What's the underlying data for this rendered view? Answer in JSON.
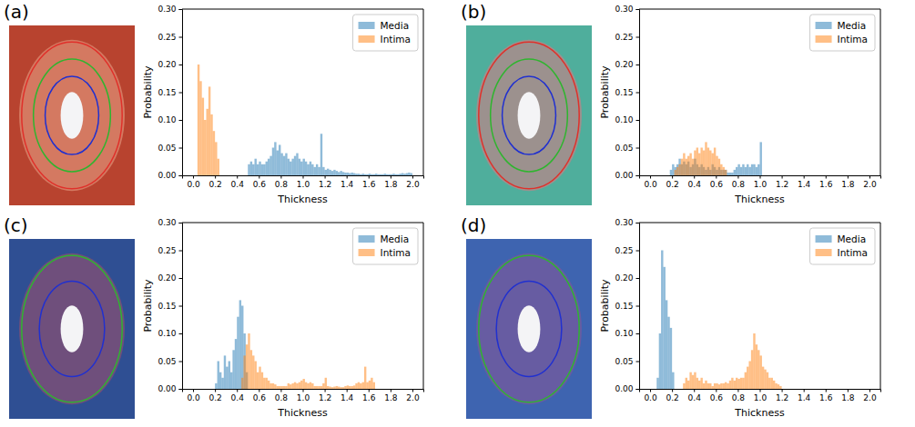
{
  "chart_data": [
    {
      "type": "histogram",
      "label": "(a)",
      "x_label": "Thickness",
      "y_label": "Probability",
      "xlim": [
        -0.1,
        2.1
      ],
      "ylim": [
        0,
        0.3
      ],
      "xticks": [
        {
          "value": 0,
          "label": "0.0"
        },
        0.2,
        0.4,
        0.6,
        0.8,
        {
          "value": 1,
          "label": "1.0"
        },
        1.2,
        1.4,
        1.6,
        1.8,
        {
          "value": 2,
          "label": "2.0"
        }
      ],
      "yticks": [
        {
          "value": 0,
          "label": "0.00"
        },
        {
          "value": 0.05,
          "label": "0.05"
        },
        {
          "value": 0.1,
          "label": "0.10"
        },
        {
          "value": 0.15,
          "label": "0.15"
        },
        {
          "value": 0.2,
          "label": "0.20"
        },
        {
          "value": 0.25,
          "label": "0.25"
        },
        {
          "value": 0.3,
          "label": "0.30"
        }
      ],
      "legend": "upper right",
      "series": [
        {
          "name": "Media",
          "color": "#1f77b4",
          "bins": [
            0.5,
            0.52,
            0.54,
            0.56,
            0.58,
            0.6,
            0.62,
            0.64,
            0.66,
            0.68,
            0.7,
            0.72,
            0.74,
            0.76,
            0.78,
            0.8,
            0.82,
            0.84,
            0.86,
            0.88,
            0.9,
            0.92,
            0.94,
            0.96,
            0.98,
            1,
            1.02,
            1.04,
            1.06,
            1.08,
            1.1,
            1.12,
            1.14,
            1.16,
            1.18,
            1.2,
            1.22,
            1.24,
            1.26,
            1.28,
            1.3,
            1.32,
            1.34,
            1.36,
            1.38,
            1.4,
            1.42,
            1.44,
            1.46,
            1.48,
            1.5,
            1.52,
            1.54,
            1.56,
            1.58,
            1.6,
            1.62,
            1.64,
            1.66,
            1.68,
            1.7,
            1.72,
            1.74,
            1.76,
            1.78,
            1.8,
            1.82,
            1.84,
            1.86,
            1.88,
            1.9,
            1.92,
            1.94,
            1.96,
            1.98,
            2
          ],
          "values": [
            0.02,
            0.025,
            0.02,
            0.03,
            0.02,
            0.025,
            0.02,
            0.02,
            0.025,
            0.03,
            0.035,
            0.05,
            0.06,
            0.045,
            0.055,
            0.04,
            0.035,
            0.04,
            0.03,
            0.025,
            0.03,
            0.035,
            0.04,
            0.03,
            0.025,
            0.03,
            0.025,
            0.02,
            0.025,
            0.02,
            0.015,
            0.02,
            0.015,
            0.075,
            0.015,
            0.01,
            0.012,
            0.01,
            0.008,
            0.01,
            0.008,
            0.006,
            0.008,
            0.006,
            0.005,
            0.005,
            0.004,
            0.005,
            0.004,
            0.003,
            0.003,
            0.002,
            0.003,
            0.002,
            0.002,
            0.003,
            0.002,
            0.002,
            0.003,
            0.002,
            0.002,
            0.002,
            0.003,
            0.002,
            0.002,
            0.002,
            0.003,
            0.002,
            0.002,
            0.003,
            0.004,
            0.003,
            0.004,
            0.005,
            0.004
          ]
        },
        {
          "name": "Intima",
          "color": "#ff7f0e",
          "bins": [
            0.04,
            0.06,
            0.08,
            0.1,
            0.12,
            0.14,
            0.16,
            0.18,
            0.2,
            0.22,
            0.24
          ],
          "values": [
            0.2,
            0.17,
            0.14,
            0.1,
            0.12,
            0.16,
            0.11,
            0.08,
            0.06,
            0.03
          ]
        }
      ]
    },
    {
      "type": "histogram",
      "label": "(b)",
      "x_label": "Thickness",
      "y_label": "Probability",
      "xlim": [
        -0.1,
        2.1
      ],
      "ylim": [
        0,
        0.3
      ],
      "xticks": [
        {
          "value": 0,
          "label": "0.0"
        },
        0.2,
        0.4,
        0.6,
        0.8,
        {
          "value": 1,
          "label": "1.0"
        },
        1.2,
        1.4,
        1.6,
        1.8,
        {
          "value": 2,
          "label": "2.0"
        }
      ],
      "yticks": [
        {
          "value": 0,
          "label": "0.00"
        },
        {
          "value": 0.05,
          "label": "0.05"
        },
        {
          "value": 0.1,
          "label": "0.10"
        },
        {
          "value": 0.15,
          "label": "0.15"
        },
        {
          "value": 0.2,
          "label": "0.20"
        },
        {
          "value": 0.25,
          "label": "0.25"
        },
        {
          "value": 0.3,
          "label": "0.30"
        }
      ],
      "legend": "upper right",
      "series": [
        {
          "name": "Media",
          "color": "#1f77b4",
          "bins": [
            0.18,
            0.2,
            0.22,
            0.24,
            0.26,
            0.28,
            0.3,
            0.32,
            0.34,
            0.36,
            0.38,
            0.4,
            0.42,
            0.44,
            0.46,
            0.48,
            0.5,
            0.52,
            0.54,
            0.56,
            0.58,
            0.6,
            0.62,
            0.64,
            0.66,
            0.68,
            0.7,
            0.72,
            0.74,
            0.76,
            0.78,
            0.8,
            0.82,
            0.84,
            0.86,
            0.88,
            0.9,
            0.92,
            0.94,
            0.96,
            0.98,
            1,
            1.02
          ],
          "values": [
            0.01,
            0.02,
            0.015,
            0.02,
            0.03,
            0.02,
            0.025,
            0.02,
            0.025,
            0.015,
            0.02,
            0.03,
            0.02,
            0.015,
            0.02,
            0.015,
            0.01,
            0.015,
            0.01,
            0.02,
            0.015,
            0.01,
            0.015,
            0.01,
            0.01,
            0.01,
            0.005,
            0.005,
            0.005,
            0.01,
            0.015,
            0.02,
            0.015,
            0.02,
            0.015,
            0.02,
            0.015,
            0.02,
            0.02,
            0.015,
            0.02,
            0.06
          ]
        },
        {
          "name": "Intima",
          "color": "#ff7f0e",
          "bins": [
            0.22,
            0.24,
            0.26,
            0.28,
            0.3,
            0.32,
            0.34,
            0.36,
            0.38,
            0.4,
            0.42,
            0.44,
            0.46,
            0.48,
            0.5,
            0.52,
            0.54,
            0.56,
            0.58,
            0.6,
            0.62,
            0.64,
            0.66,
            0.68,
            0.7
          ],
          "values": [
            0.01,
            0.015,
            0.02,
            0.03,
            0.04,
            0.03,
            0.035,
            0.04,
            0.03,
            0.045,
            0.05,
            0.04,
            0.05,
            0.045,
            0.06,
            0.05,
            0.045,
            0.04,
            0.05,
            0.035,
            0.03,
            0.02,
            0.015,
            0.01
          ]
        }
      ]
    },
    {
      "type": "histogram",
      "label": "(c)",
      "x_label": "Thickness",
      "y_label": "Probability",
      "xlim": [
        -0.1,
        2.1
      ],
      "ylim": [
        0,
        0.3
      ],
      "xticks": [
        {
          "value": 0,
          "label": "0.0"
        },
        0.2,
        0.4,
        0.6,
        0.8,
        {
          "value": 1,
          "label": "1.0"
        },
        1.2,
        1.4,
        1.6,
        1.8,
        {
          "value": 2,
          "label": "2.0"
        }
      ],
      "yticks": [
        {
          "value": 0,
          "label": "0.00"
        },
        {
          "value": 0.05,
          "label": "0.05"
        },
        {
          "value": 0.1,
          "label": "0.10"
        },
        {
          "value": 0.15,
          "label": "0.15"
        },
        {
          "value": 0.2,
          "label": "0.20"
        },
        {
          "value": 0.25,
          "label": "0.25"
        },
        {
          "value": 0.3,
          "label": "0.30"
        }
      ],
      "legend": "upper right",
      "series": [
        {
          "name": "Media",
          "color": "#1f77b4",
          "bins": [
            0.2,
            0.22,
            0.24,
            0.26,
            0.28,
            0.3,
            0.32,
            0.34,
            0.36,
            0.38,
            0.4,
            0.42,
            0.44,
            0.46,
            0.48,
            0.5
          ],
          "values": [
            0.01,
            0.05,
            0.03,
            0.02,
            0.06,
            0.04,
            0.05,
            0.03,
            0.07,
            0.09,
            0.13,
            0.16,
            0.15,
            0.1,
            0.03
          ]
        },
        {
          "name": "Intima",
          "color": "#ff7f0e",
          "bins": [
            0.44,
            0.46,
            0.48,
            0.5,
            0.52,
            0.54,
            0.56,
            0.58,
            0.6,
            0.62,
            0.64,
            0.66,
            0.68,
            0.7,
            0.72,
            0.74,
            0.76,
            0.78,
            0.8,
            0.82,
            0.84,
            0.86,
            0.88,
            0.9,
            0.92,
            0.94,
            0.96,
            0.98,
            1,
            1.02,
            1.04,
            1.06,
            1.08,
            1.1,
            1.12,
            1.14,
            1.16,
            1.18,
            1.2,
            1.22,
            1.24,
            1.26,
            1.28,
            1.3,
            1.32,
            1.34,
            1.36,
            1.38,
            1.4,
            1.42,
            1.44,
            1.46,
            1.48,
            1.5,
            1.52,
            1.54,
            1.56,
            1.58,
            1.6,
            1.62,
            1.64,
            1.66
          ],
          "values": [
            0.02,
            0.06,
            0.08,
            0.1,
            0.07,
            0.06,
            0.05,
            0.03,
            0.04,
            0.03,
            0.02,
            0.02,
            0.015,
            0.01,
            0.01,
            0.008,
            0.005,
            0.005,
            0.005,
            0.005,
            0.005,
            0.01,
            0.008,
            0.01,
            0.012,
            0.01,
            0.012,
            0.015,
            0.018,
            0.012,
            0.01,
            0.012,
            0.01,
            0.005,
            0.005,
            0.005,
            0.005,
            0.01,
            0.02,
            0.005,
            0.004,
            0.003,
            0.004,
            0.005,
            0.004,
            0.003,
            0.003,
            0.005,
            0.006,
            0.005,
            0.005,
            0.006,
            0.01,
            0.012,
            0.01,
            0.012,
            0.04,
            0.012,
            0.015,
            0.02,
            0.012
          ]
        }
      ]
    },
    {
      "type": "histogram",
      "label": "(d)",
      "x_label": "Thickness",
      "y_label": "Probability",
      "xlim": [
        -0.1,
        2.1
      ],
      "ylim": [
        0,
        0.3
      ],
      "xticks": [
        {
          "value": 0,
          "label": "0.0"
        },
        0.2,
        0.4,
        0.6,
        0.8,
        {
          "value": 1,
          "label": "1.0"
        },
        1.2,
        1.4,
        1.6,
        1.8,
        {
          "value": 2,
          "label": "2.0"
        }
      ],
      "yticks": [
        {
          "value": 0,
          "label": "0.00"
        },
        {
          "value": 0.05,
          "label": "0.05"
        },
        {
          "value": 0.1,
          "label": "0.10"
        },
        {
          "value": 0.15,
          "label": "0.15"
        },
        {
          "value": 0.2,
          "label": "0.20"
        },
        {
          "value": 0.25,
          "label": "0.25"
        },
        {
          "value": 0.3,
          "label": "0.30"
        }
      ],
      "legend": "upper right",
      "series": [
        {
          "name": "Media",
          "color": "#1f77b4",
          "bins": [
            0.06,
            0.08,
            0.1,
            0.12,
            0.14,
            0.16,
            0.18,
            0.2,
            0.22
          ],
          "values": [
            0.02,
            0.1,
            0.25,
            0.22,
            0.16,
            0.13,
            0.11,
            0.03
          ]
        },
        {
          "name": "Intima",
          "color": "#ff7f0e",
          "bins": [
            0.3,
            0.32,
            0.34,
            0.36,
            0.38,
            0.4,
            0.42,
            0.44,
            0.46,
            0.48,
            0.5,
            0.52,
            0.54,
            0.56,
            0.58,
            0.6,
            0.62,
            0.64,
            0.66,
            0.68,
            0.7,
            0.72,
            0.74,
            0.76,
            0.78,
            0.8,
            0.82,
            0.84,
            0.86,
            0.88,
            0.9,
            0.92,
            0.94,
            0.96,
            0.98,
            1,
            1.02,
            1.04,
            1.06,
            1.08,
            1.1,
            1.12,
            1.14,
            1.16,
            1.18,
            1.2
          ],
          "values": [
            0.01,
            0.02,
            0.015,
            0.03,
            0.025,
            0.03,
            0.02,
            0.015,
            0.02,
            0.01,
            0.015,
            0.01,
            0.01,
            0.005,
            0.01,
            0.01,
            0.008,
            0.01,
            0.01,
            0.012,
            0.01,
            0.015,
            0.02,
            0.015,
            0.02,
            0.018,
            0.02,
            0.02,
            0.03,
            0.04,
            0.05,
            0.07,
            0.1,
            0.08,
            0.07,
            0.06,
            0.04,
            0.035,
            0.03,
            0.02,
            0.02,
            0.015,
            0.01,
            0.008,
            0.005
          ]
        }
      ]
    }
  ]
}
